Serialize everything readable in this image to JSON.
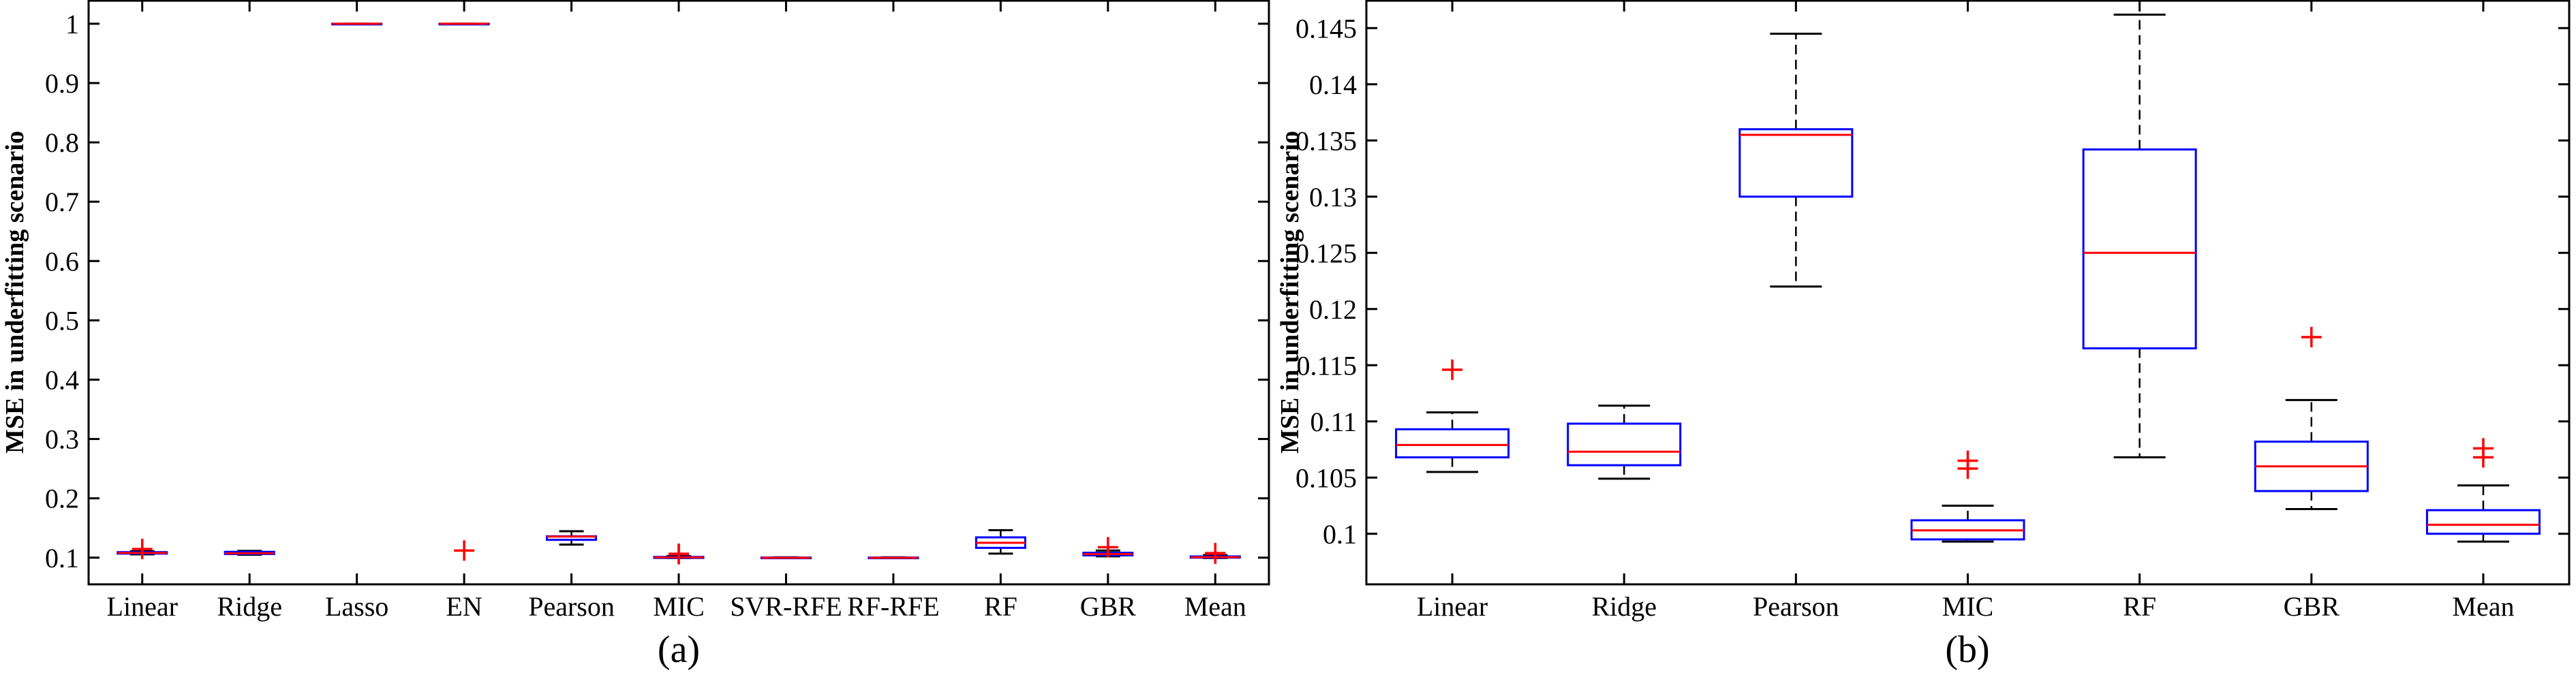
{
  "chart_data": [
    {
      "type": "box",
      "panel_label": "(a)",
      "ylabel": "MSE in underfitting scenario",
      "ylim": [
        0.055,
        1.04
      ],
      "yticks": [
        "0.1",
        "0.2",
        "0.3",
        "0.4",
        "0.5",
        "0.6",
        "0.7",
        "0.8",
        "0.9",
        "1"
      ],
      "categories": [
        "Linear",
        "Ridge",
        "Lasso",
        "EN",
        "Pearson",
        "MIC",
        "SVR-RFE",
        "RF-RFE",
        "RF",
        "GBR",
        "Mean"
      ],
      "boxes": [
        {
          "whisker_low": 0.1055,
          "q1": 0.1068,
          "median": 0.1079,
          "q3": 0.1093,
          "whisker_high": 0.1108,
          "outliers": [
            0.1146
          ]
        },
        {
          "whisker_low": 0.1049,
          "q1": 0.1061,
          "median": 0.1073,
          "q3": 0.1098,
          "whisker_high": 0.1114,
          "outliers": []
        },
        {
          "whisker_low": 1.0,
          "q1": 1.0,
          "median": 1.0,
          "q3": 1.0,
          "whisker_high": 1.0,
          "outliers": []
        },
        {
          "whisker_low": 1.0,
          "q1": 1.0,
          "median": 1.0,
          "q3": 1.0,
          "whisker_high": 1.0,
          "outliers": [
            0.112
          ]
        },
        {
          "whisker_low": 0.122,
          "q1": 0.13,
          "median": 0.1355,
          "q3": 0.136,
          "whisker_high": 0.1445,
          "outliers": []
        },
        {
          "whisker_low": 0.0993,
          "q1": 0.0995,
          "median": 0.1003,
          "q3": 0.1012,
          "whisker_high": 0.1025,
          "outliers": [
            0.1058,
            0.1065
          ]
        },
        {
          "whisker_low": 0.0993,
          "q1": 0.0995,
          "median": 0.0998,
          "q3": 0.1002,
          "whisker_high": 0.1006,
          "outliers": []
        },
        {
          "whisker_low": 0.0993,
          "q1": 0.0995,
          "median": 0.0998,
          "q3": 0.1002,
          "whisker_high": 0.1006,
          "outliers": []
        },
        {
          "whisker_low": 0.1068,
          "q1": 0.1165,
          "median": 0.125,
          "q3": 0.1342,
          "whisker_high": 0.1462,
          "outliers": []
        },
        {
          "whisker_low": 0.1022,
          "q1": 0.1038,
          "median": 0.106,
          "q3": 0.1082,
          "whisker_high": 0.1119,
          "outliers": [
            0.1175
          ]
        },
        {
          "whisker_low": 0.0993,
          "q1": 0.1,
          "median": 0.1008,
          "q3": 0.1021,
          "whisker_high": 0.1043,
          "outliers": [
            0.1068,
            0.1076
          ]
        }
      ]
    },
    {
      "type": "box",
      "panel_label": "(b)",
      "ylabel": "MSE in underfitting scenario",
      "ylim": [
        0.0955,
        0.1475
      ],
      "yticks": [
        "0.1",
        "0.105",
        "0.11",
        "0.115",
        "0.12",
        "0.125",
        "0.13",
        "0.135",
        "0.14",
        "0.145"
      ],
      "categories": [
        "Linear",
        "Ridge",
        "Pearson",
        "MIC",
        "RF",
        "GBR",
        "Mean"
      ],
      "boxes": [
        {
          "whisker_low": 0.1055,
          "q1": 0.1068,
          "median": 0.1079,
          "q3": 0.1093,
          "whisker_high": 0.1108,
          "outliers": [
            0.1146
          ]
        },
        {
          "whisker_low": 0.1049,
          "q1": 0.1061,
          "median": 0.1073,
          "q3": 0.1098,
          "whisker_high": 0.1114,
          "outliers": []
        },
        {
          "whisker_low": 0.122,
          "q1": 0.13,
          "median": 0.1355,
          "q3": 0.136,
          "whisker_high": 0.1445,
          "outliers": []
        },
        {
          "whisker_low": 0.0993,
          "q1": 0.0995,
          "median": 0.1003,
          "q3": 0.1012,
          "whisker_high": 0.1025,
          "outliers": [
            0.1058,
            0.1065
          ]
        },
        {
          "whisker_low": 0.1068,
          "q1": 0.1165,
          "median": 0.125,
          "q3": 0.1342,
          "whisker_high": 0.1462,
          "outliers": []
        },
        {
          "whisker_low": 0.1022,
          "q1": 0.1038,
          "median": 0.106,
          "q3": 0.1082,
          "whisker_high": 0.1119,
          "outliers": [
            0.1175
          ]
        },
        {
          "whisker_low": 0.0993,
          "q1": 0.1,
          "median": 0.1008,
          "q3": 0.1021,
          "whisker_high": 0.1043,
          "outliers": [
            0.1068,
            0.1076
          ]
        }
      ]
    }
  ],
  "colors": {
    "box": "#0000ff",
    "median": "#ff0000",
    "whisker": "#000000",
    "outlier": "#ff0000",
    "axis": "#000000"
  }
}
